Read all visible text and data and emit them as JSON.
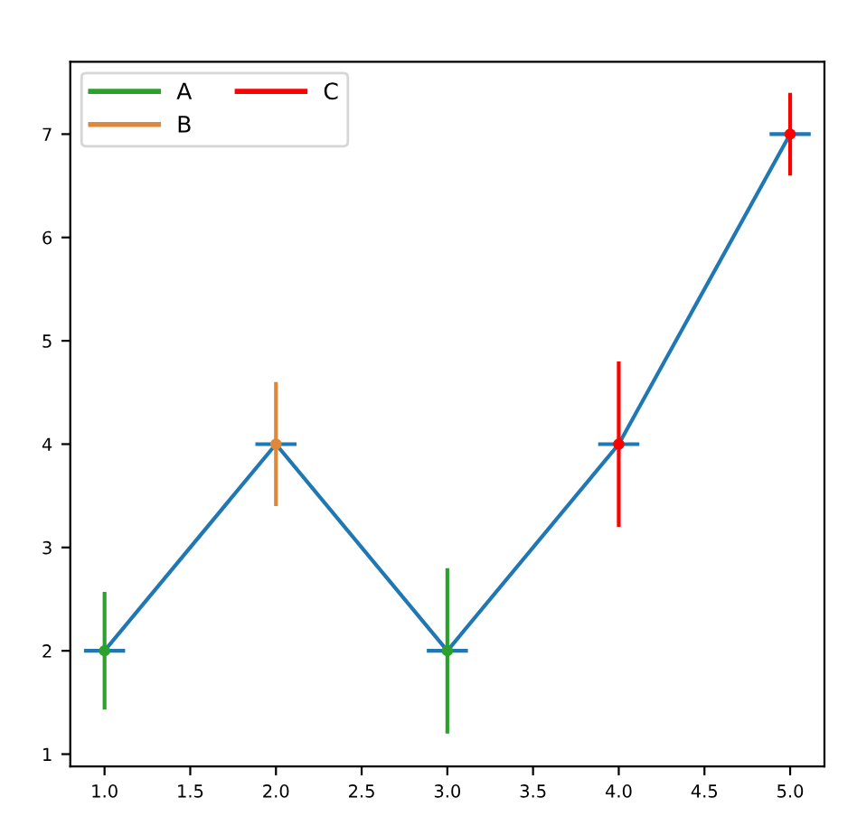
{
  "chart_data": {
    "type": "line",
    "x": [
      1,
      2,
      3,
      4,
      5
    ],
    "xlim": [
      0.8,
      5.2
    ],
    "ylim": [
      0.88,
      7.7
    ],
    "xticks": [
      {
        "value": 1,
        "label": "1.0"
      },
      {
        "value": 1.5,
        "label": "1.5"
      },
      {
        "value": 2,
        "label": "2.0"
      },
      {
        "value": 2.5,
        "label": "2.5"
      },
      {
        "value": 3,
        "label": "3.0"
      },
      {
        "value": 3.5,
        "label": "3.5"
      },
      {
        "value": 4,
        "label": "4.0"
      },
      {
        "value": 4.5,
        "label": "4.5"
      },
      {
        "value": 5,
        "label": "5.0"
      }
    ],
    "yticks": [
      1,
      2,
      3,
      4,
      5,
      6,
      7
    ],
    "grid": false,
    "legend": "top left",
    "series": [
      {
        "color": "#1f77b4",
        "values": [
          2,
          4,
          2,
          4,
          7
        ],
        "xerrors": [
          0.12,
          0.12,
          0.12,
          0.12,
          0.12
        ]
      },
      {
        "name": "A",
        "type": "scatter",
        "marker": "circle",
        "color": "#2ca02c",
        "x": [
          1,
          3
        ],
        "values": [
          2,
          2
        ],
        "errors": [
          0.57,
          0.8
        ]
      },
      {
        "name": "B",
        "type": "scatter",
        "marker": "circle",
        "color": "#e0883a",
        "x": [
          2
        ],
        "values": [
          4
        ],
        "errors": [
          0.6
        ]
      },
      {
        "name": "C",
        "type": "scatter",
        "marker": "circle",
        "color": "#ff0000",
        "x": [
          4,
          5
        ],
        "values": [
          4,
          7
        ],
        "errors": [
          0.8,
          0.4
        ]
      }
    ]
  }
}
